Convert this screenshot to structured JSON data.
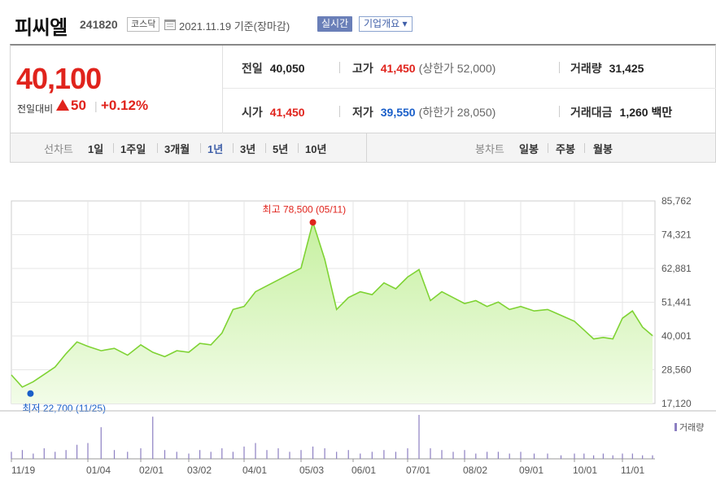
{
  "header": {
    "stock_name": "피씨엘",
    "stock_code": "241820",
    "market": "코스닥",
    "date": "2021.11.19 기준(장마감)",
    "realtime_label": "실시간",
    "company_label": "기업개요 ▾"
  },
  "summary": {
    "price": "40,100",
    "change_label": "전일대비",
    "change_value": "50",
    "change_percent": "+0.12%",
    "prev_close_label": "전일",
    "prev_close": "40,050",
    "high_label": "고가",
    "high": "41,450",
    "upper_limit": "(상한가 52,000)",
    "volume_label": "거래량",
    "volume": "31,425",
    "open_label": "시가",
    "open": "41,450",
    "low_label": "저가",
    "low": "39,550",
    "lower_limit": "(하한가 28,050)",
    "amount_label": "거래대금",
    "amount": "1,260",
    "amount_unit": "백만"
  },
  "period_bar": {
    "line_label": "선차트",
    "line_periods": [
      "1일",
      "1주일",
      "3개월",
      "1년",
      "3년",
      "5년",
      "10년"
    ],
    "active_period": "1년",
    "candle_label": "봉차트",
    "candle_periods": [
      "일봉",
      "주봉",
      "월봉"
    ]
  },
  "colors": {
    "up": "#e0231c",
    "down": "#1a5fc9",
    "line": "#7fd334",
    "fill": "#d9f6c0",
    "active": "#3f5fa8",
    "volume": "#8c7fc2"
  },
  "chart_data": {
    "type": "area",
    "y_ticks": [
      "85,762",
      "74,321",
      "62,881",
      "51,441",
      "40,001",
      "28,560",
      "17,120"
    ],
    "ylim": [
      17120,
      85762
    ],
    "x_ticks": [
      "11/19",
      "01/04",
      "02/01",
      "03/02",
      "04/01",
      "05/03",
      "06/01",
      "07/01",
      "08/02",
      "09/01",
      "10/01",
      "11/01"
    ],
    "high_annotation": "최고 78,500 (05/11)",
    "low_annotation": "최저 22,700 (11/25)",
    "volume_legend": "거래량",
    "x": [
      "11/19",
      "11/25",
      "12/01",
      "12/07",
      "12/14",
      "12/21",
      "12/28",
      "01/04",
      "01/11",
      "01/18",
      "01/25",
      "02/01",
      "02/08",
      "02/15",
      "02/22",
      "03/02",
      "03/08",
      "03/15",
      "03/22",
      "03/29",
      "04/01",
      "04/05",
      "04/12",
      "04/19",
      "04/26",
      "05/03",
      "05/11",
      "05/17",
      "05/24",
      "05/31",
      "06/07",
      "06/14",
      "06/21",
      "06/28",
      "07/01",
      "07/05",
      "07/12",
      "07/19",
      "07/26",
      "08/02",
      "08/09",
      "08/16",
      "08/23",
      "08/30",
      "09/01",
      "09/06",
      "09/13",
      "09/27",
      "10/01",
      "10/05",
      "10/12",
      "10/18",
      "10/25",
      "11/01",
      "11/08",
      "11/15",
      "11/19"
    ],
    "values": [
      26800,
      22700,
      24500,
      27000,
      29500,
      34000,
      38000,
      36500,
      35000,
      35800,
      33500,
      37000,
      34500,
      33000,
      35000,
      34500,
      37500,
      37000,
      41000,
      49000,
      50000,
      55000,
      57000,
      59000,
      61000,
      63000,
      78500,
      66000,
      49000,
      53000,
      55000,
      54000,
      58000,
      56000,
      60000,
      62500,
      52000,
      55000,
      53000,
      51000,
      52000,
      50000,
      51500,
      49000,
      50000,
      48500,
      49000,
      47000,
      45000,
      42000,
      39000,
      39500,
      39000,
      46000,
      48500,
      43000,
      40100
    ],
    "volume_values": [
      4,
      5,
      3,
      6,
      4,
      5,
      8,
      9,
      18,
      5,
      4,
      6,
      24,
      5,
      4,
      3,
      5,
      4,
      6,
      4,
      7,
      9,
      5,
      6,
      4,
      5,
      7,
      6,
      4,
      5,
      3,
      4,
      5,
      4,
      6,
      25,
      6,
      5,
      4,
      5,
      3,
      4,
      4,
      3,
      4,
      3,
      3,
      2,
      3,
      3,
      2,
      3,
      2,
      3,
      3,
      2,
      2
    ]
  }
}
